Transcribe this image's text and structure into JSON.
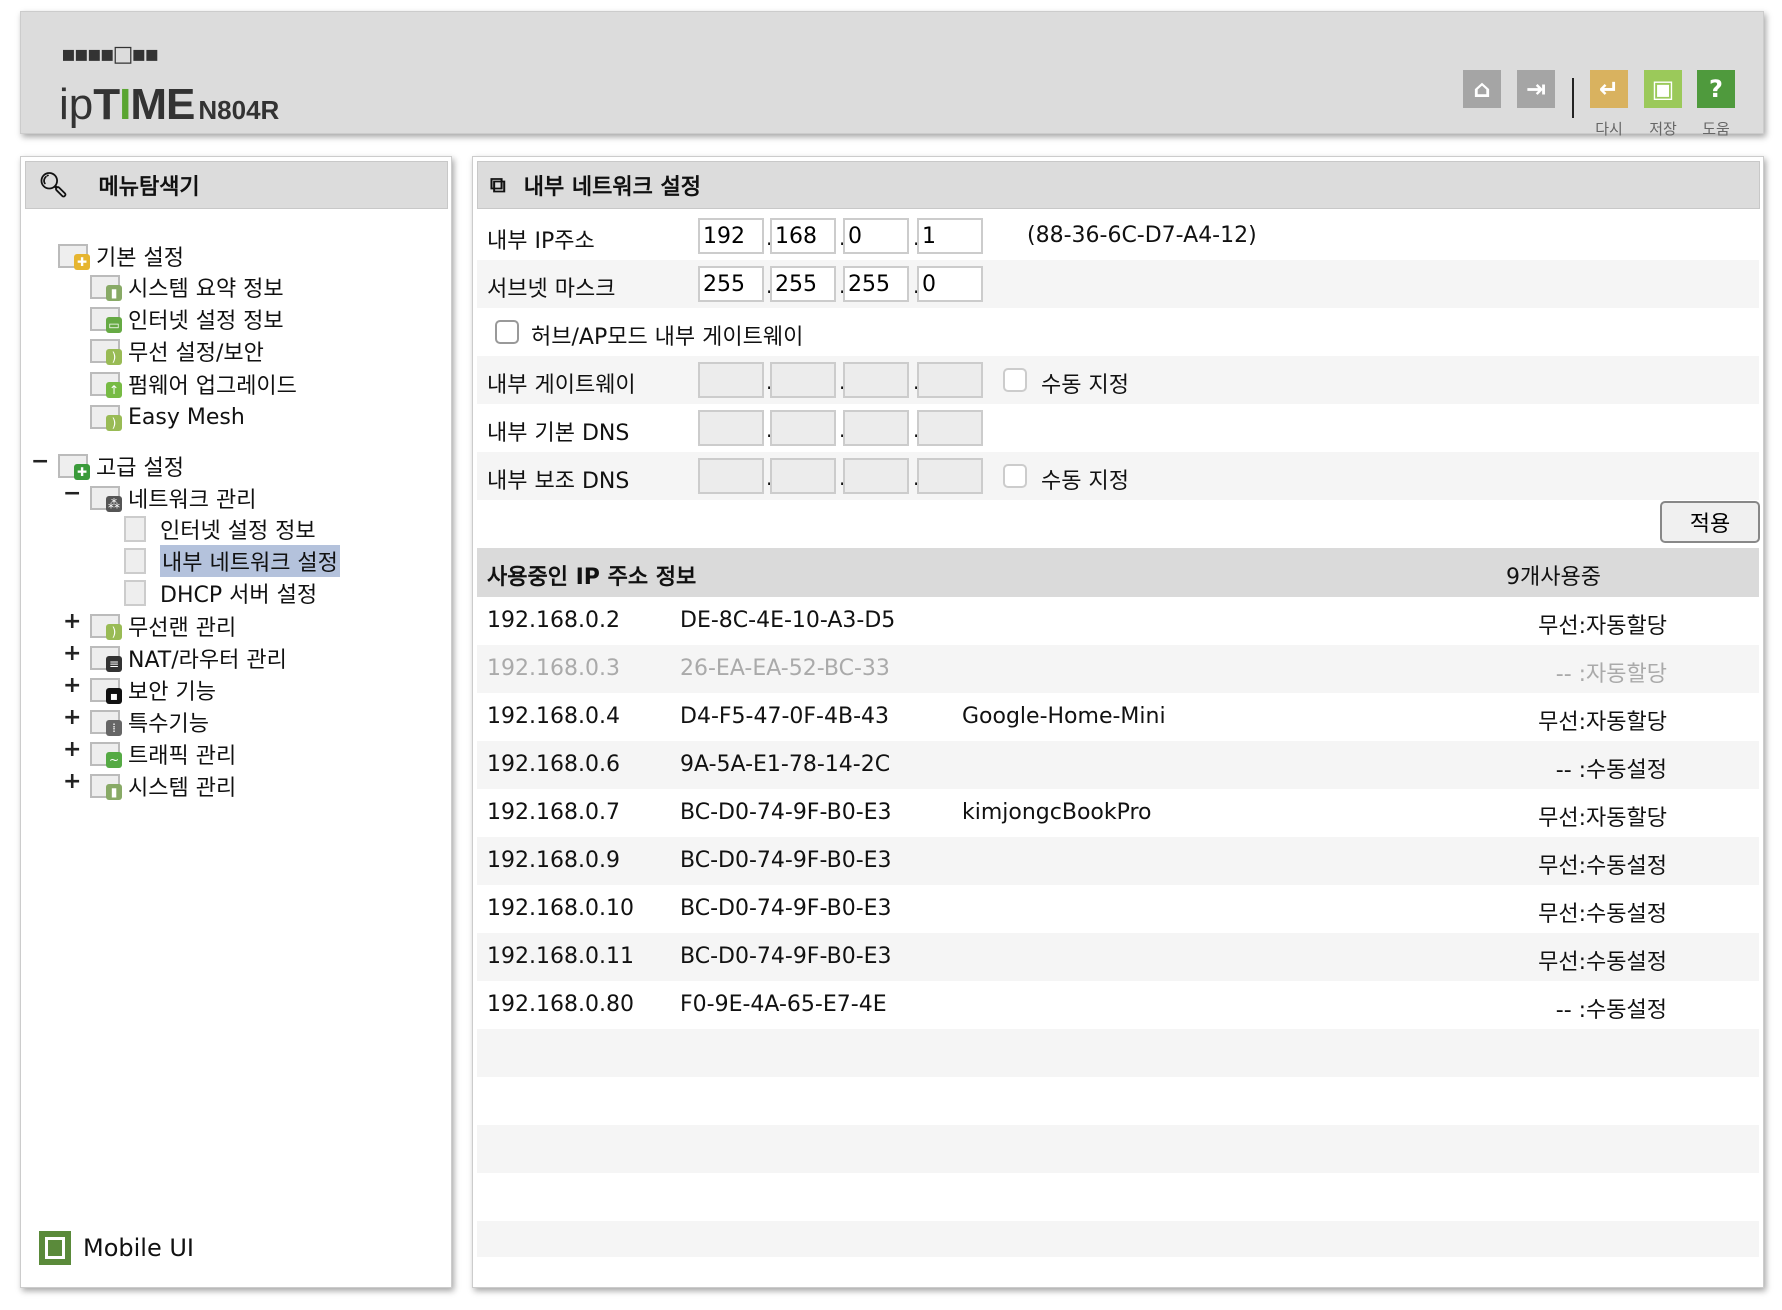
{
  "header": {
    "logo_dots": "▪▪▪▪□▪▪",
    "logo_ip": "ip",
    "logo_t": "T",
    "logo_i": "I",
    "logo_me": "ME",
    "model": "N804R",
    "buttons": [
      {
        "name": "home",
        "label": ""
      },
      {
        "name": "logout",
        "label": ""
      },
      {
        "name": "reload",
        "label": "다시",
        "color": "#d9b25f"
      },
      {
        "name": "save",
        "label": "저장",
        "color": "#9bc95a"
      },
      {
        "name": "help",
        "label": "도움",
        "color": "#4f9a3d"
      }
    ]
  },
  "left": {
    "title": "메뉴탐색기",
    "toggle_minus": "−",
    "toggle_plus": "+",
    "basic": {
      "label": "기본 설정",
      "items": [
        "시스템 요약 정보",
        "인터넷 설정 정보",
        "무선 설정/보안",
        "펌웨어 업그레이드",
        "Easy Mesh"
      ]
    },
    "advanced": {
      "label": "고급 설정",
      "network": {
        "label": "네트워크 관리",
        "items": [
          "인터넷 설정 정보",
          "내부 네트워크 설정",
          "DHCP 서버 설정"
        ]
      },
      "groups": [
        "무선랜 관리",
        "NAT/라우터 관리",
        "보안 기능",
        "특수기능",
        "트래픽 관리",
        "시스템 관리"
      ]
    },
    "mobile": "Mobile UI"
  },
  "right": {
    "title": "내부 네트워크 설정",
    "ip_label": "내부 IP주소",
    "ip": [
      "192",
      "168",
      "0",
      "1"
    ],
    "mac": "(88-36-6C-D7-A4-12)",
    "mask_label": "서브넷 마스크",
    "mask": [
      "255",
      "255",
      "255",
      "0"
    ],
    "hub_label": "허브/AP모드 내부 게이트웨이",
    "hub_checked": false,
    "gw_label": "내부 게이트웨이",
    "dns1_label": "내부 기본 DNS",
    "dns2_label": "내부 보조 DNS",
    "manual_label": "수동 지정",
    "apply": "적용",
    "table": {
      "title": "사용중인 IP 주소 정보",
      "count": "9개사용중",
      "rows": [
        {
          "ip": "192.168.0.2",
          "mac": "DE-8C-4E-10-A3-D5",
          "name": "",
          "type": "무선:자동할당",
          "inactive": false
        },
        {
          "ip": "192.168.0.3",
          "mac": "26-EA-EA-52-BC-33",
          "name": "",
          "type": "-- :자동할당",
          "inactive": true
        },
        {
          "ip": "192.168.0.4",
          "mac": "D4-F5-47-0F-4B-43",
          "name": "Google-Home-Mini",
          "type": "무선:자동할당",
          "inactive": false
        },
        {
          "ip": "192.168.0.6",
          "mac": "9A-5A-E1-78-14-2C",
          "name": "",
          "type": "-- :수동설정",
          "inactive": false
        },
        {
          "ip": "192.168.0.7",
          "mac": "BC-D0-74-9F-B0-E3",
          "name": "kimjongcBookPro",
          "type": "무선:자동할당",
          "inactive": false
        },
        {
          "ip": "192.168.0.9",
          "mac": "BC-D0-74-9F-B0-E3",
          "name": "",
          "type": "무선:수동설정",
          "inactive": false
        },
        {
          "ip": "192.168.0.10",
          "mac": "BC-D0-74-9F-B0-E3",
          "name": "",
          "type": "무선:수동설정",
          "inactive": false
        },
        {
          "ip": "192.168.0.11",
          "mac": "BC-D0-74-9F-B0-E3",
          "name": "",
          "type": "무선:수동설정",
          "inactive": false
        },
        {
          "ip": "192.168.0.80",
          "mac": "F0-9E-4A-65-E7-4E",
          "name": "",
          "type": "-- :수동설정",
          "inactive": false
        }
      ]
    }
  }
}
